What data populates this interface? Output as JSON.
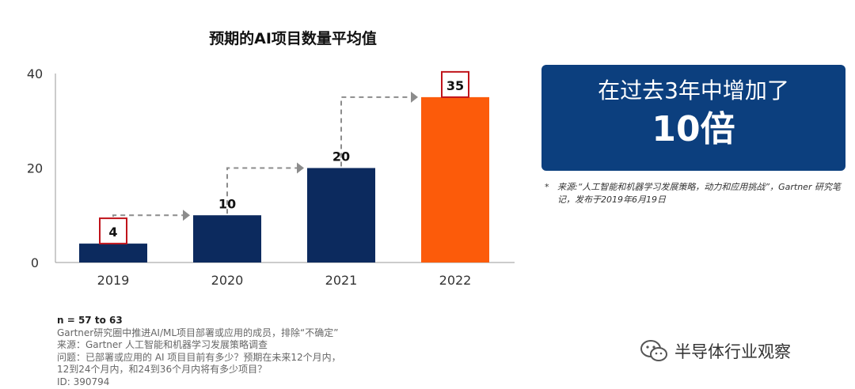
{
  "chart_data": {
    "type": "bar",
    "title": "预期的AI项目数量平均值",
    "categories": [
      "2019",
      "2020",
      "2021",
      "2022"
    ],
    "values": [
      4,
      10,
      20,
      35
    ],
    "data_labels": [
      "4",
      "10",
      "20",
      "35"
    ],
    "boxed_labels": [
      "2019",
      "2022"
    ],
    "yticks": [
      "0",
      "20",
      "40"
    ],
    "ylim": [
      0,
      40
    ],
    "xlabel": "",
    "ylabel": "",
    "grid": false,
    "colors": {
      "bar": "#0c2a5e",
      "highlight_bar": "#fc5b0a",
      "label_box": "#c0141b",
      "arrow": "#8c8c8c"
    },
    "highlight_category": "2022"
  },
  "callout": {
    "line1": "在过去3年中增加了",
    "line2": "10倍",
    "color": "#0c3f7e"
  },
  "source_note": {
    "star": "*",
    "text": "来源:“人工智能和机器学习发展策略，动力和应用挑战”，Gartner 研究笔记，发布于2019年6月19日"
  },
  "footnote": {
    "n": "n = 57 to 63",
    "lines": [
      "Gartner研究圈中推进AI/ML项目部署或应用的成员，排除“不确定”",
      "来源：Gartner 人工智能和机器学习发展策略调查",
      "问题：已部署或应用的 AI 项目目前有多少？预期在未来12个月内，",
      "12到24个月内，和24到36个月内将有多少项目？",
      "ID: 390794"
    ]
  },
  "watermark": {
    "text": "半导体行业观察",
    "icon": "wechat-icon"
  }
}
